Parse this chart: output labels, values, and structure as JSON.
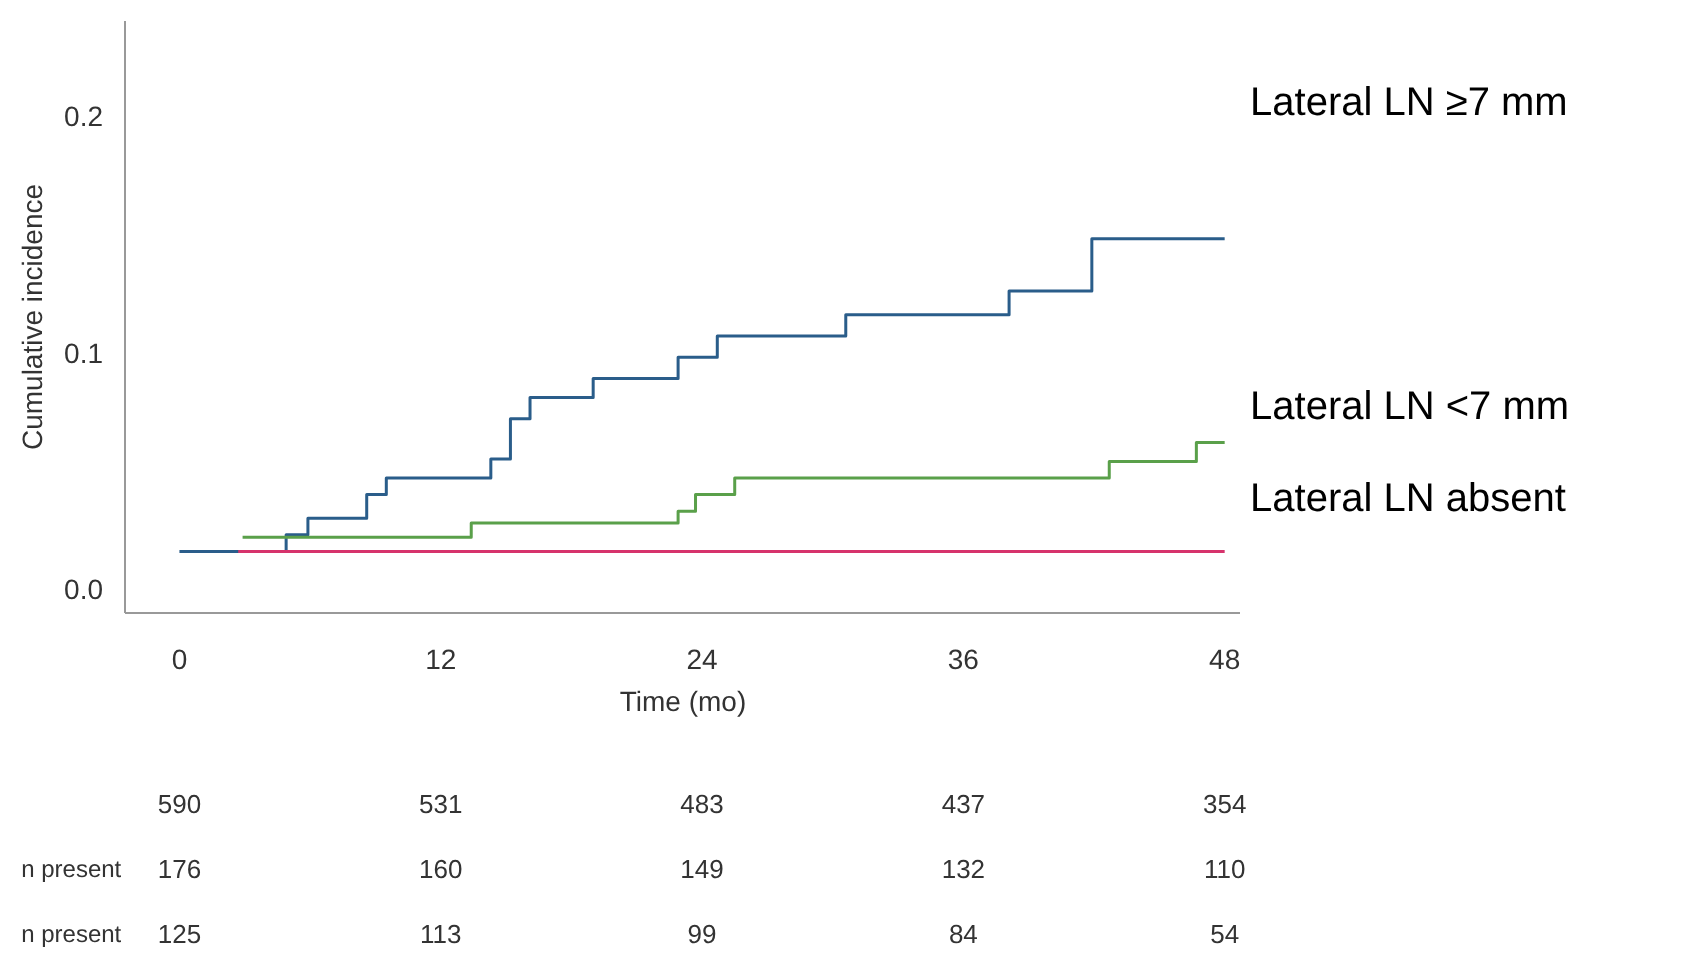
{
  "chart_data": {
    "type": "step",
    "xlabel": "Time (mo)",
    "ylabel": "Cumulative incidence",
    "xlim": [
      -2.5,
      48.75
    ],
    "xticks": [
      0,
      12,
      24,
      36,
      48
    ],
    "ylim": [
      -0.01,
      0.24
    ],
    "yticks": [
      {
        "value": 0,
        "label": "0.0"
      },
      {
        "value": 0.1,
        "label": "0.1"
      },
      {
        "value": 0.2,
        "label": "0.2"
      }
    ],
    "grid": false,
    "legend": false,
    "marker": "none",
    "line_style": "solid",
    "series": [
      {
        "name": "Lateral LN ≥7 mm",
        "color": "#2a5d8a",
        "x": [
          0,
          4.9,
          5.9,
          8.6,
          9.5,
          14.3,
          15.2,
          16.1,
          19.0,
          22.9,
          24.7,
          30.6,
          38.1,
          41.9,
          48
        ],
        "values": [
          0.016,
          0.023,
          0.03,
          0.04,
          0.047,
          0.055,
          0.072,
          0.081,
          0.089,
          0.098,
          0.107,
          0.116,
          0.126,
          0.148,
          0.148
        ]
      },
      {
        "name": "Lateral LN <7 mm",
        "color": "#5aa04a",
        "x": [
          2.9,
          13.4,
          22.9,
          23.7,
          25.5,
          42.7,
          46.7,
          48
        ],
        "values": [
          0.022,
          0.028,
          0.033,
          0.04,
          0.047,
          0.054,
          0.062,
          0.062
        ]
      },
      {
        "name": "Lateral LN absent",
        "color": "#d6336c",
        "x": [
          2.7,
          48
        ],
        "values": [
          0.016,
          0.016
        ]
      }
    ],
    "annotations": [
      "590",
      "531",
      "483",
      "437",
      "354",
      "n present",
      "176",
      "160",
      "149",
      "132",
      "110",
      "n present",
      "125",
      "113",
      "99",
      "84",
      "54"
    ]
  }
}
